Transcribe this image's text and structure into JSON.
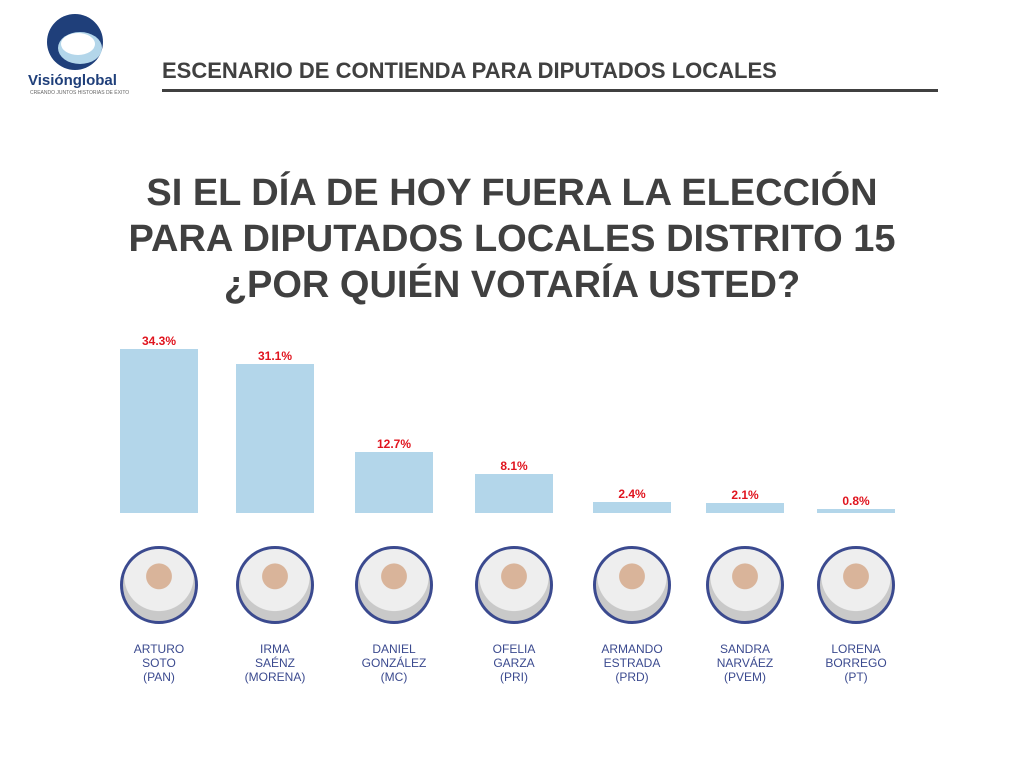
{
  "logo": {
    "name": "Visiónglobal",
    "tagline": "CREANDO JUNTOS HISTORIAS DE ÉXITO"
  },
  "header": "ESCENARIO DE CONTIENDA PARA DIPUTADOS LOCALES",
  "chart_data": {
    "type": "bar",
    "title": "SI EL DÍA DE HOY FUERA LA ELECCIÓN\nPARA DIPUTADOS LOCALES DISTRITO 15\n¿POR QUIÉN VOTARÍA USTED?",
    "categories": [
      "ARTURO\nSOTO\n(PAN)",
      "IRMA\nSAÉNZ\n(MORENA)",
      "DANIEL\nGONZÁLEZ\n(MC)",
      "OFELIA\nGARZA\n(PRI)",
      "ARMANDO\nESTRADA\n(PRD)",
      "SANDRA\nNARVÁEZ\n(PVEM)",
      "LORENA\nBORREGO\n(PT)"
    ],
    "values": [
      34.3,
      31.1,
      12.7,
      8.1,
      2.4,
      2.1,
      0.8
    ],
    "value_labels": [
      "34.3%",
      "31.1%",
      "12.7%",
      "8.1%",
      "2.4%",
      "2.1%",
      "0.8%"
    ],
    "color": "#b3d6ea",
    "label_color": "#e0141e"
  }
}
